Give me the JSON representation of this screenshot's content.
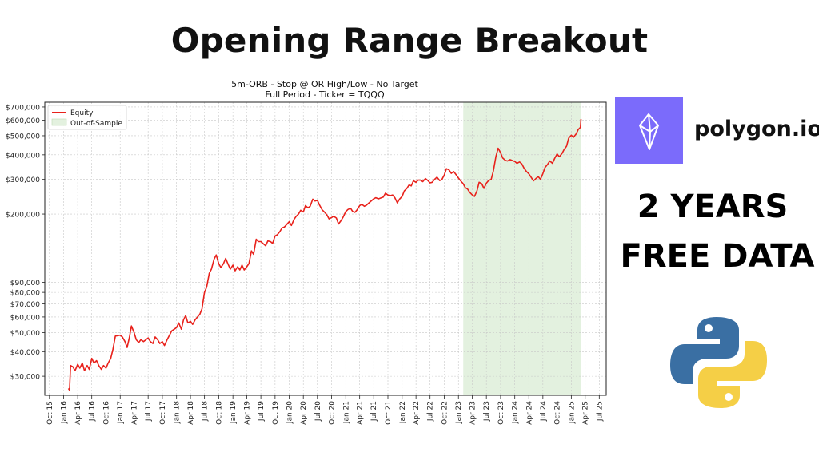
{
  "headline": "Opening Range Breakout",
  "brand": {
    "name": "polygon.io",
    "logo_color": "#7b6bfb",
    "icon": "crystal-icon"
  },
  "promo": {
    "line1": "2 YEARS",
    "line2": "FREE DATA"
  },
  "python_logo": {
    "icon": "python-logo-icon",
    "blue": "#3a6fa3",
    "yellow": "#f5cf46"
  },
  "chart_data": {
    "type": "line",
    "title": "5m-ORB - Stop @ OR High/Low - No Target",
    "subtitle": "Full Period - Ticker = TQQQ",
    "yscale": "log",
    "ylim": [
      24000,
      740000
    ],
    "xlim": [
      "2015-09-01",
      "2025-08-15"
    ],
    "grid": true,
    "legend_position": "top-left",
    "legend": [
      {
        "label": "Equity",
        "kind": "line",
        "color": "#e8211b"
      },
      {
        "label": "Out-of-Sample",
        "kind": "patch",
        "color": "#e3f1df"
      }
    ],
    "y_ticks": [
      {
        "value": 30000,
        "label": "$30,000"
      },
      {
        "value": 40000,
        "label": "$40,000"
      },
      {
        "value": 50000,
        "label": "$50,000"
      },
      {
        "value": 60000,
        "label": "$60,000"
      },
      {
        "value": 70000,
        "label": "$70,000"
      },
      {
        "value": 80000,
        "label": "$80,000"
      },
      {
        "value": 90000,
        "label": "$90,000"
      },
      {
        "value": 200000,
        "label": "$200,000"
      },
      {
        "value": 300000,
        "label": "$300,000"
      },
      {
        "value": 400000,
        "label": "$400,000"
      },
      {
        "value": 500000,
        "label": "$500,000"
      },
      {
        "value": 600000,
        "label": "$600,000"
      },
      {
        "value": 700000,
        "label": "$700,000"
      }
    ],
    "x_ticks": [
      {
        "date": "2015-10-01",
        "label": "Oct 15"
      },
      {
        "date": "2016-01-01",
        "label": "Jan 16"
      },
      {
        "date": "2016-04-01",
        "label": "Apr 16"
      },
      {
        "date": "2016-07-01",
        "label": "Jul 16"
      },
      {
        "date": "2016-10-01",
        "label": "Oct 16"
      },
      {
        "date": "2017-01-01",
        "label": "Jan 17"
      },
      {
        "date": "2017-04-01",
        "label": "Apr 17"
      },
      {
        "date": "2017-07-01",
        "label": "Jul 17"
      },
      {
        "date": "2017-10-01",
        "label": "Oct 17"
      },
      {
        "date": "2018-01-01",
        "label": "Jan 18"
      },
      {
        "date": "2018-04-01",
        "label": "Apr 18"
      },
      {
        "date": "2018-07-01",
        "label": "Jul 18"
      },
      {
        "date": "2018-10-01",
        "label": "Oct 18"
      },
      {
        "date": "2019-01-01",
        "label": "Jan 19"
      },
      {
        "date": "2019-04-01",
        "label": "Apr 19"
      },
      {
        "date": "2019-07-01",
        "label": "Jul 19"
      },
      {
        "date": "2019-10-01",
        "label": "Oct 19"
      },
      {
        "date": "2020-01-01",
        "label": "Jan 20"
      },
      {
        "date": "2020-04-01",
        "label": "Apr 20"
      },
      {
        "date": "2020-07-01",
        "label": "Jul 20"
      },
      {
        "date": "2020-10-01",
        "label": "Oct 20"
      },
      {
        "date": "2021-01-01",
        "label": "Jan 21"
      },
      {
        "date": "2021-04-01",
        "label": "Apr 21"
      },
      {
        "date": "2021-07-01",
        "label": "Jul 21"
      },
      {
        "date": "2021-10-01",
        "label": "Oct 21"
      },
      {
        "date": "2022-01-01",
        "label": "Jan 22"
      },
      {
        "date": "2022-04-01",
        "label": "Apr 22"
      },
      {
        "date": "2022-07-01",
        "label": "Jul 22"
      },
      {
        "date": "2022-10-01",
        "label": "Oct 22"
      },
      {
        "date": "2023-01-01",
        "label": "Jan 23"
      },
      {
        "date": "2023-04-01",
        "label": "Apr 23"
      },
      {
        "date": "2023-07-01",
        "label": "Jul 23"
      },
      {
        "date": "2023-10-01",
        "label": "Oct 23"
      },
      {
        "date": "2024-01-01",
        "label": "Jan 24"
      },
      {
        "date": "2024-04-01",
        "label": "Apr 24"
      },
      {
        "date": "2024-07-01",
        "label": "Jul 24"
      },
      {
        "date": "2024-10-01",
        "label": "Oct 24"
      },
      {
        "date": "2025-01-01",
        "label": "Jan 25"
      },
      {
        "date": "2025-04-01",
        "label": "Apr 25"
      },
      {
        "date": "2025-07-01",
        "label": "Jul 25"
      }
    ],
    "out_of_sample": {
      "start": "2023-02-01",
      "end": "2025-03-05"
    },
    "series": [
      {
        "name": "Equity",
        "color": "#e8211b",
        "points": [
          [
            "2016-02-01",
            26000
          ],
          [
            "2016-02-08",
            25500
          ],
          [
            "2016-02-15",
            34000
          ],
          [
            "2016-03-01",
            33500
          ],
          [
            "2016-03-15",
            32000
          ],
          [
            "2016-04-01",
            34500
          ],
          [
            "2016-04-15",
            33000
          ],
          [
            "2016-05-01",
            35000
          ],
          [
            "2016-05-15",
            32000
          ],
          [
            "2016-06-01",
            34000
          ],
          [
            "2016-06-15",
            32500
          ],
          [
            "2016-07-01",
            37000
          ],
          [
            "2016-07-15",
            35000
          ],
          [
            "2016-08-01",
            36000
          ],
          [
            "2016-08-15",
            34000
          ],
          [
            "2016-09-01",
            32500
          ],
          [
            "2016-09-15",
            34000
          ],
          [
            "2016-10-01",
            33000
          ],
          [
            "2016-10-15",
            35000
          ],
          [
            "2016-11-01",
            37000
          ],
          [
            "2016-11-15",
            41000
          ],
          [
            "2016-12-01",
            48000
          ],
          [
            "2017-01-01",
            48500
          ],
          [
            "2017-01-15",
            47500
          ],
          [
            "2017-02-01",
            45000
          ],
          [
            "2017-02-15",
            42000
          ],
          [
            "2017-03-01",
            47000
          ],
          [
            "2017-03-15",
            54000
          ],
          [
            "2017-04-01",
            50000
          ],
          [
            "2017-04-15",
            46000
          ],
          [
            "2017-05-01",
            44500
          ],
          [
            "2017-05-15",
            46000
          ],
          [
            "2017-06-01",
            45000
          ],
          [
            "2017-07-01",
            47000
          ],
          [
            "2017-07-15",
            45000
          ],
          [
            "2017-08-01",
            44000
          ],
          [
            "2017-08-15",
            47500
          ],
          [
            "2017-09-01",
            46000
          ],
          [
            "2017-09-15",
            44000
          ],
          [
            "2017-10-01",
            45000
          ],
          [
            "2017-10-15",
            43000
          ],
          [
            "2017-11-01",
            46000
          ],
          [
            "2017-12-01",
            51000
          ],
          [
            "2018-01-01",
            53000
          ],
          [
            "2018-01-15",
            56000
          ],
          [
            "2018-02-01",
            52000
          ],
          [
            "2018-02-15",
            58000
          ],
          [
            "2018-03-01",
            61000
          ],
          [
            "2018-03-15",
            56000
          ],
          [
            "2018-04-01",
            57000
          ],
          [
            "2018-04-15",
            55000
          ],
          [
            "2018-05-01",
            58000
          ],
          [
            "2018-06-01",
            62000
          ],
          [
            "2018-06-15",
            66000
          ],
          [
            "2018-07-01",
            80000
          ],
          [
            "2018-07-15",
            85000
          ],
          [
            "2018-08-01",
            100000
          ],
          [
            "2018-08-15",
            105000
          ],
          [
            "2018-09-01",
            118000
          ],
          [
            "2018-09-15",
            124000
          ],
          [
            "2018-10-01",
            112000
          ],
          [
            "2018-10-15",
            107000
          ],
          [
            "2018-11-01",
            112000
          ],
          [
            "2018-11-15",
            119000
          ],
          [
            "2018-12-01",
            111000
          ],
          [
            "2018-12-15",
            105000
          ],
          [
            "2019-01-01",
            110000
          ],
          [
            "2019-01-15",
            103000
          ],
          [
            "2019-02-01",
            108000
          ],
          [
            "2019-02-15",
            104000
          ],
          [
            "2019-03-01",
            110000
          ],
          [
            "2019-03-15",
            104000
          ],
          [
            "2019-04-01",
            108000
          ],
          [
            "2019-04-15",
            112000
          ],
          [
            "2019-05-01",
            130000
          ],
          [
            "2019-05-15",
            125000
          ],
          [
            "2019-06-01",
            149000
          ],
          [
            "2019-06-15",
            145000
          ],
          [
            "2019-07-01",
            145000
          ],
          [
            "2019-08-01",
            138000
          ],
          [
            "2019-08-15",
            146000
          ],
          [
            "2019-09-01",
            145000
          ],
          [
            "2019-09-15",
            142000
          ],
          [
            "2019-10-01",
            155000
          ],
          [
            "2019-10-15",
            157000
          ],
          [
            "2019-11-01",
            163000
          ],
          [
            "2019-11-15",
            170000
          ],
          [
            "2019-12-01",
            172000
          ],
          [
            "2020-01-01",
            183000
          ],
          [
            "2020-01-15",
            175000
          ],
          [
            "2020-02-01",
            188000
          ],
          [
            "2020-02-15",
            195000
          ],
          [
            "2020-03-01",
            200000
          ],
          [
            "2020-03-15",
            209000
          ],
          [
            "2020-04-01",
            205000
          ],
          [
            "2020-04-15",
            221000
          ],
          [
            "2020-05-01",
            215000
          ],
          [
            "2020-05-15",
            219000
          ],
          [
            "2020-06-01",
            238000
          ],
          [
            "2020-06-15",
            233000
          ],
          [
            "2020-07-01",
            235000
          ],
          [
            "2020-07-15",
            222000
          ],
          [
            "2020-08-01",
            210000
          ],
          [
            "2020-08-15",
            205000
          ],
          [
            "2020-09-01",
            198000
          ],
          [
            "2020-09-15",
            189000
          ],
          [
            "2020-10-01",
            192000
          ],
          [
            "2020-10-15",
            195000
          ],
          [
            "2020-11-01",
            191000
          ],
          [
            "2020-11-15",
            178000
          ],
          [
            "2020-12-01",
            185000
          ],
          [
            "2020-12-15",
            193000
          ],
          [
            "2021-01-01",
            206000
          ],
          [
            "2021-01-15",
            211000
          ],
          [
            "2021-02-01",
            214000
          ],
          [
            "2021-02-15",
            206000
          ],
          [
            "2021-03-01",
            204000
          ],
          [
            "2021-03-15",
            210000
          ],
          [
            "2021-04-01",
            221000
          ],
          [
            "2021-04-15",
            224000
          ],
          [
            "2021-05-01",
            219000
          ],
          [
            "2021-05-15",
            222000
          ],
          [
            "2021-06-01",
            228000
          ],
          [
            "2021-07-01",
            239000
          ],
          [
            "2021-07-15",
            242000
          ],
          [
            "2021-08-01",
            239000
          ],
          [
            "2021-09-01",
            244000
          ],
          [
            "2021-09-15",
            255000
          ],
          [
            "2021-10-01",
            250000
          ],
          [
            "2021-10-15",
            248000
          ],
          [
            "2021-11-01",
            250000
          ],
          [
            "2021-11-15",
            242000
          ],
          [
            "2021-12-01",
            228000
          ],
          [
            "2021-12-15",
            238000
          ],
          [
            "2022-01-01",
            246000
          ],
          [
            "2022-01-15",
            262000
          ],
          [
            "2022-02-01",
            270000
          ],
          [
            "2022-02-15",
            281000
          ],
          [
            "2022-03-01",
            278000
          ],
          [
            "2022-03-15",
            295000
          ],
          [
            "2022-04-01",
            290000
          ],
          [
            "2022-04-15",
            298000
          ],
          [
            "2022-05-01",
            297000
          ],
          [
            "2022-05-15",
            292000
          ],
          [
            "2022-06-01",
            303000
          ],
          [
            "2022-06-15",
            297000
          ],
          [
            "2022-07-01",
            288000
          ],
          [
            "2022-07-15",
            290000
          ],
          [
            "2022-08-01",
            301000
          ],
          [
            "2022-08-15",
            308000
          ],
          [
            "2022-09-01",
            296000
          ],
          [
            "2022-09-15",
            299000
          ],
          [
            "2022-10-01",
            316000
          ],
          [
            "2022-10-15",
            340000
          ],
          [
            "2022-11-01",
            335000
          ],
          [
            "2022-11-15",
            322000
          ],
          [
            "2022-12-01",
            329000
          ],
          [
            "2022-12-15",
            318000
          ],
          [
            "2023-01-01",
            305000
          ],
          [
            "2023-01-15",
            295000
          ],
          [
            "2023-02-01",
            285000
          ],
          [
            "2023-02-15",
            272000
          ],
          [
            "2023-03-01",
            268000
          ],
          [
            "2023-03-15",
            258000
          ],
          [
            "2023-04-01",
            250000
          ],
          [
            "2023-04-15",
            246000
          ],
          [
            "2023-05-01",
            262000
          ],
          [
            "2023-05-15",
            290000
          ],
          [
            "2023-06-01",
            285000
          ],
          [
            "2023-06-15",
            270000
          ],
          [
            "2023-07-01",
            287000
          ],
          [
            "2023-07-15",
            296000
          ],
          [
            "2023-08-01",
            300000
          ],
          [
            "2023-08-15",
            331000
          ],
          [
            "2023-09-01",
            392000
          ],
          [
            "2023-09-15",
            432000
          ],
          [
            "2023-10-01",
            410000
          ],
          [
            "2023-10-15",
            385000
          ],
          [
            "2023-11-01",
            375000
          ],
          [
            "2023-11-15",
            372000
          ],
          [
            "2023-12-01",
            378000
          ],
          [
            "2024-01-01",
            370000
          ],
          [
            "2024-01-15",
            362000
          ],
          [
            "2024-02-01",
            368000
          ],
          [
            "2024-02-15",
            360000
          ],
          [
            "2024-03-01",
            342000
          ],
          [
            "2024-03-15",
            330000
          ],
          [
            "2024-04-01",
            320000
          ],
          [
            "2024-04-15",
            308000
          ],
          [
            "2024-05-01",
            295000
          ],
          [
            "2024-05-15",
            302000
          ],
          [
            "2024-06-01",
            310000
          ],
          [
            "2024-06-15",
            300000
          ],
          [
            "2024-07-01",
            321000
          ],
          [
            "2024-07-15",
            345000
          ],
          [
            "2024-08-01",
            358000
          ],
          [
            "2024-08-15",
            372000
          ],
          [
            "2024-09-01",
            362000
          ],
          [
            "2024-09-15",
            383000
          ],
          [
            "2024-10-01",
            404000
          ],
          [
            "2024-10-15",
            391000
          ],
          [
            "2024-11-01",
            405000
          ],
          [
            "2024-11-15",
            425000
          ],
          [
            "2024-12-01",
            442000
          ],
          [
            "2024-12-15",
            486000
          ],
          [
            "2025-01-01",
            503000
          ],
          [
            "2025-01-15",
            491000
          ],
          [
            "2025-02-01",
            510000
          ],
          [
            "2025-02-15",
            538000
          ],
          [
            "2025-03-01",
            552000
          ],
          [
            "2025-03-05",
            608000
          ]
        ]
      }
    ]
  }
}
